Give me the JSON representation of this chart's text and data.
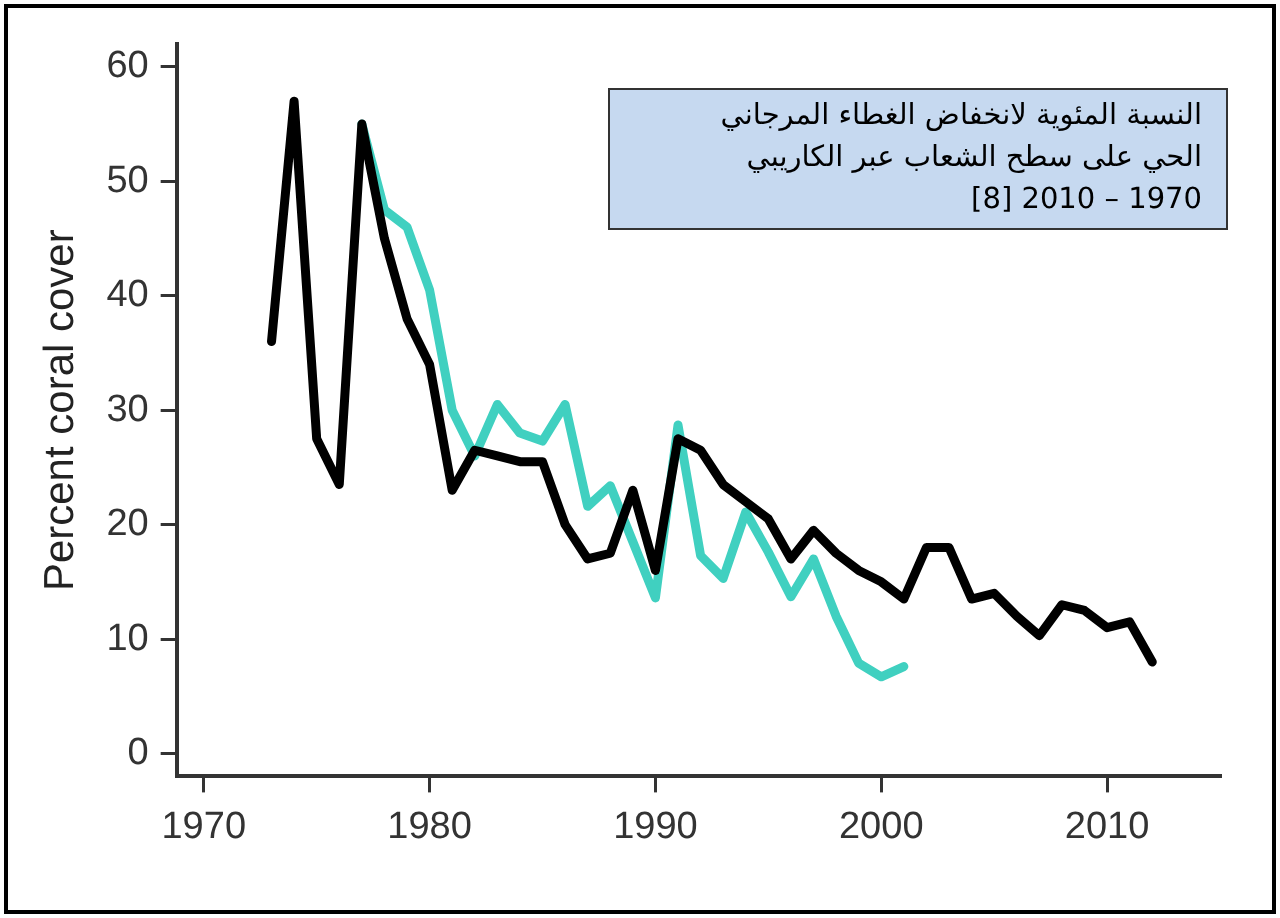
{
  "chart_data": {
    "type": "line",
    "ylabel": "Percent coral cover",
    "annotations": [
      "النسبة المئوية لانخفاض الغطاء المرجاني\nالحي على سطح الشعاب عبر الكاريبي\n1970 – 2010 [8]"
    ],
    "series": [
      {
        "color": "#000000",
        "x": [
          1973,
          1974,
          1975,
          1976,
          1977,
          1978,
          1979,
          1980,
          1981,
          1982,
          1983,
          1984,
          1985,
          1986,
          1987,
          1988,
          1989,
          1990,
          1991,
          1992,
          1993,
          1994,
          1995,
          1996,
          1997,
          1998,
          1999,
          2000,
          2001,
          2002,
          2003,
          2004,
          2005,
          2006,
          2007,
          2008,
          2009,
          2010,
          2011,
          2012
        ],
        "values": [
          36,
          57,
          27.5,
          23.5,
          55,
          45,
          38,
          34,
          23,
          26.5,
          26,
          25.5,
          25.5,
          20,
          17,
          17.5,
          23,
          16,
          27.5,
          26.5,
          23.5,
          22,
          20.5,
          17,
          19.5,
          17.5,
          16,
          15,
          13.5,
          18,
          18,
          13.5,
          14,
          12,
          10.3,
          13,
          12.5,
          11,
          11.5,
          8
        ]
      },
      {
        "color": "#40d0c0",
        "x": [
          1977,
          1978,
          1979,
          1980,
          1981,
          1982,
          1983,
          1984,
          1985,
          1986,
          1987,
          1988,
          1989,
          1990,
          1991,
          1992,
          1993,
          1994,
          1995,
          1996,
          1997,
          1998,
          1999,
          2000,
          2001
        ],
        "values": [
          55,
          47.5,
          46,
          40.5,
          30,
          26,
          30.5,
          28,
          27.3,
          30.5,
          21.6,
          23.4,
          18.5,
          13.6,
          28.7,
          17.3,
          15.3,
          21.1,
          17.6,
          13.7,
          17,
          12,
          7.9,
          6.7,
          7.6
        ]
      }
    ],
    "xlim": [
      1968.8,
      2015
    ],
    "xticks": [
      1970,
      1980,
      1990,
      2000,
      2010
    ],
    "ylim": [
      -2,
      62
    ],
    "yticks": [
      0,
      10,
      20,
      30,
      40,
      50,
      60
    ],
    "grid": false,
    "legend": false,
    "marker": "none",
    "line_style": "solid"
  }
}
